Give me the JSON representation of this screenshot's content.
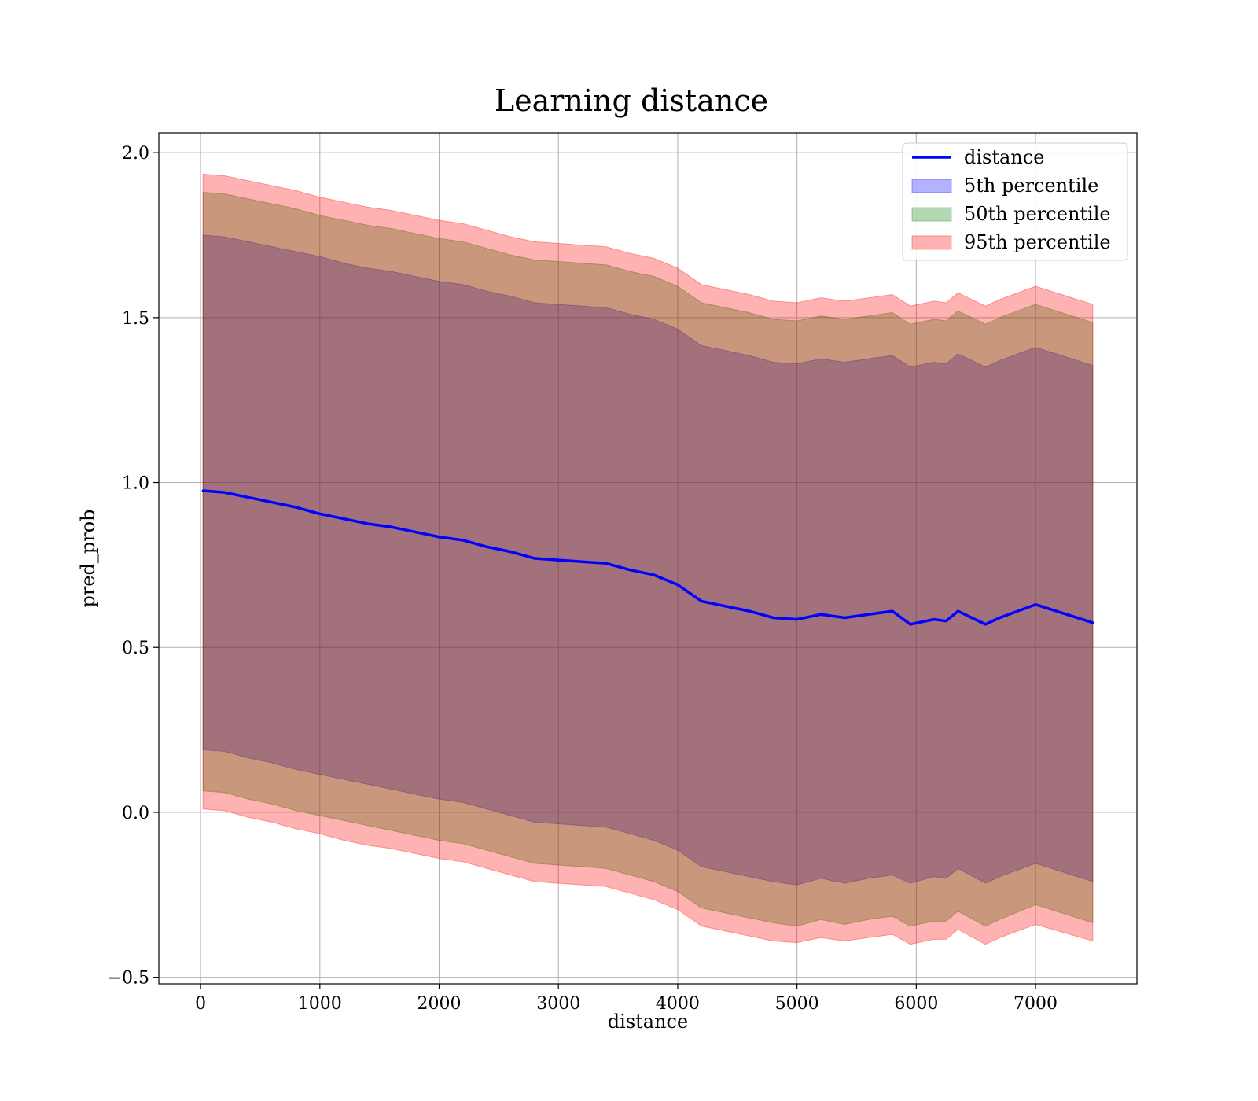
{
  "chart_data": {
    "type": "line",
    "title": "Learning distance",
    "xlabel": "distance",
    "ylabel": "pred_prob",
    "xlim": [
      -350,
      7850
    ],
    "ylim": [
      -0.52,
      2.06
    ],
    "xticks": [
      0,
      1000,
      2000,
      3000,
      4000,
      5000,
      6000,
      7000
    ],
    "yticks": [
      -0.5,
      0.0,
      0.5,
      1.0,
      1.5,
      2.0
    ],
    "xtick_labels": [
      "0",
      "1000",
      "2000",
      "3000",
      "4000",
      "5000",
      "6000",
      "7000"
    ],
    "ytick_labels": [
      "−0.5",
      "0.0",
      "0.5",
      "1.0",
      "1.5",
      "2.0"
    ],
    "grid": true,
    "legend_position": "top-right",
    "legend": [
      {
        "label": "distance",
        "kind": "line",
        "color": "#0000ff"
      },
      {
        "label": "5th percentile",
        "kind": "band",
        "color": "#0000ff"
      },
      {
        "label": "50th percentile",
        "kind": "band",
        "color": "#008000"
      },
      {
        "label": "95th percentile",
        "kind": "band",
        "color": "#ff0000"
      }
    ],
    "x": [
      20,
      200,
      400,
      600,
      800,
      1000,
      1200,
      1400,
      1600,
      1800,
      2000,
      2200,
      2400,
      2600,
      2800,
      3000,
      3200,
      3400,
      3600,
      3800,
      4000,
      4200,
      4400,
      4600,
      4800,
      5000,
      5200,
      5400,
      5600,
      5800,
      5950,
      6150,
      6250,
      6350,
      6580,
      6700,
      7000,
      7480
    ],
    "series": [
      {
        "name": "distance",
        "values": [
          0.975,
          0.97,
          0.955,
          0.94,
          0.925,
          0.905,
          0.89,
          0.875,
          0.865,
          0.85,
          0.835,
          0.825,
          0.805,
          0.79,
          0.77,
          0.765,
          0.76,
          0.755,
          0.735,
          0.72,
          0.69,
          0.64,
          0.625,
          0.61,
          0.59,
          0.585,
          0.6,
          0.59,
          0.6,
          0.61,
          0.57,
          0.585,
          0.58,
          0.61,
          0.57,
          0.59,
          0.63,
          0.575
        ]
      },
      {
        "name": "5th percentile",
        "lower": [
          0.19,
          0.185,
          0.165,
          0.15,
          0.13,
          0.115,
          0.1,
          0.085,
          0.07,
          0.055,
          0.04,
          0.03,
          0.01,
          -0.01,
          -0.03,
          -0.035,
          -0.04,
          -0.045,
          -0.065,
          -0.085,
          -0.115,
          -0.165,
          -0.18,
          -0.195,
          -0.21,
          -0.22,
          -0.2,
          -0.215,
          -0.2,
          -0.19,
          -0.215,
          -0.195,
          -0.2,
          -0.17,
          -0.215,
          -0.195,
          -0.155,
          -0.21
        ],
        "upper": [
          1.75,
          1.745,
          1.73,
          1.715,
          1.7,
          1.685,
          1.665,
          1.65,
          1.64,
          1.625,
          1.61,
          1.6,
          1.58,
          1.565,
          1.545,
          1.54,
          1.535,
          1.53,
          1.51,
          1.495,
          1.465,
          1.415,
          1.4,
          1.385,
          1.365,
          1.36,
          1.375,
          1.365,
          1.375,
          1.385,
          1.35,
          1.365,
          1.36,
          1.39,
          1.35,
          1.37,
          1.41,
          1.355
        ]
      },
      {
        "name": "50th percentile",
        "lower": [
          0.065,
          0.06,
          0.04,
          0.025,
          0.005,
          -0.01,
          -0.025,
          -0.04,
          -0.055,
          -0.07,
          -0.085,
          -0.095,
          -0.115,
          -0.135,
          -0.155,
          -0.16,
          -0.165,
          -0.17,
          -0.19,
          -0.21,
          -0.24,
          -0.29,
          -0.305,
          -0.32,
          -0.335,
          -0.345,
          -0.325,
          -0.34,
          -0.325,
          -0.315,
          -0.345,
          -0.33,
          -0.33,
          -0.3,
          -0.345,
          -0.325,
          -0.28,
          -0.335
        ],
        "upper": [
          1.88,
          1.875,
          1.86,
          1.845,
          1.83,
          1.81,
          1.795,
          1.78,
          1.77,
          1.755,
          1.74,
          1.73,
          1.71,
          1.69,
          1.675,
          1.67,
          1.665,
          1.66,
          1.64,
          1.625,
          1.595,
          1.545,
          1.53,
          1.515,
          1.495,
          1.49,
          1.505,
          1.495,
          1.505,
          1.515,
          1.48,
          1.495,
          1.49,
          1.52,
          1.48,
          1.5,
          1.54,
          1.485
        ]
      },
      {
        "name": "95th percentile",
        "lower": [
          0.01,
          0.005,
          -0.015,
          -0.03,
          -0.05,
          -0.065,
          -0.085,
          -0.1,
          -0.11,
          -0.125,
          -0.14,
          -0.15,
          -0.17,
          -0.19,
          -0.21,
          -0.215,
          -0.22,
          -0.225,
          -0.245,
          -0.265,
          -0.295,
          -0.345,
          -0.36,
          -0.375,
          -0.39,
          -0.395,
          -0.38,
          -0.39,
          -0.38,
          -0.37,
          -0.4,
          -0.385,
          -0.385,
          -0.355,
          -0.4,
          -0.38,
          -0.34,
          -0.39
        ],
        "upper": [
          1.935,
          1.93,
          1.915,
          1.9,
          1.885,
          1.865,
          1.85,
          1.835,
          1.825,
          1.81,
          1.795,
          1.785,
          1.765,
          1.745,
          1.73,
          1.725,
          1.72,
          1.715,
          1.695,
          1.68,
          1.65,
          1.6,
          1.585,
          1.57,
          1.55,
          1.545,
          1.56,
          1.55,
          1.56,
          1.57,
          1.535,
          1.55,
          1.545,
          1.575,
          1.535,
          1.555,
          1.595,
          1.54
        ]
      }
    ]
  },
  "colors": {
    "line": "#0000ff",
    "band_5": "#0000ff",
    "band_50": "#008000",
    "band_95": "#ff0000"
  }
}
